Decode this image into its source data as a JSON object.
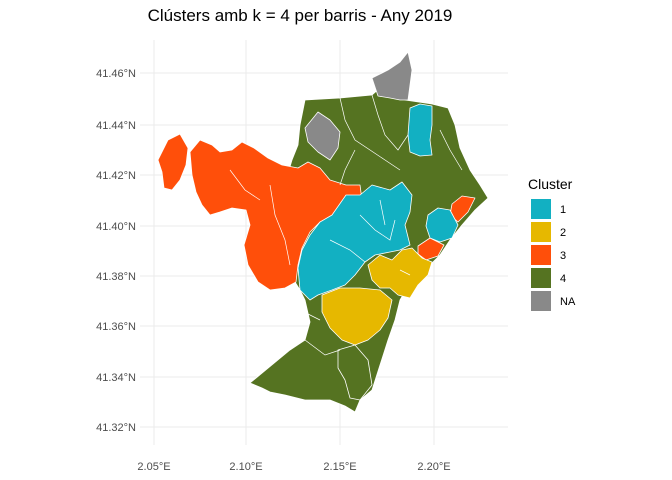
{
  "title": "Clústers amb k = 4 per barris - Any 2019",
  "axes": {
    "x_ticks": [
      "2.05°E",
      "2.10°E",
      "2.15°E",
      "2.20°E"
    ],
    "y_ticks": [
      "41.46°N",
      "41.44°N",
      "41.42°N",
      "41.40°N",
      "41.38°N",
      "41.36°N",
      "41.34°N",
      "41.32°N"
    ]
  },
  "legend": {
    "title": "Cluster",
    "items": [
      {
        "label": "1",
        "color": "#12B0C2"
      },
      {
        "label": "2",
        "color": "#E6B800"
      },
      {
        "label": "3",
        "color": "#FF4F0A"
      },
      {
        "label": "4",
        "color": "#557321"
      },
      {
        "label": "NA",
        "color": "#898989"
      }
    ]
  }
}
